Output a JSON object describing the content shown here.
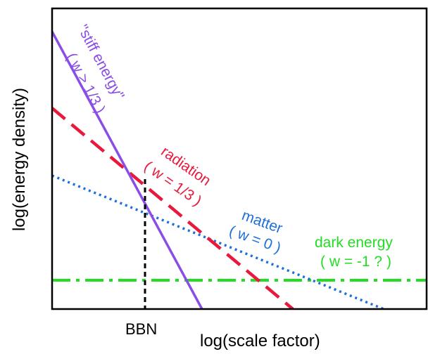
{
  "chart_data": {
    "type": "line",
    "title": "",
    "xlabel": "log(scale factor)",
    "ylabel": "log(energy density)",
    "x_ticks": [
      "BBN"
    ],
    "grid": false,
    "legend": "none",
    "series": [
      {
        "name": "\"stiff energy\"",
        "sub": "( w > 1/3 )",
        "style": "solid",
        "color": "#8a4ee6"
      },
      {
        "name": "radiation",
        "sub": "( w = 1/3 )",
        "style": "dashed",
        "color": "#e8193c"
      },
      {
        "name": "matter",
        "sub": "( w = 0 )",
        "style": "dotted",
        "color": "#1f6fd6"
      },
      {
        "name": "dark energy",
        "sub": "( w = -1 ? )",
        "style": "dashdot",
        "color": "#22dd22"
      }
    ]
  }
}
